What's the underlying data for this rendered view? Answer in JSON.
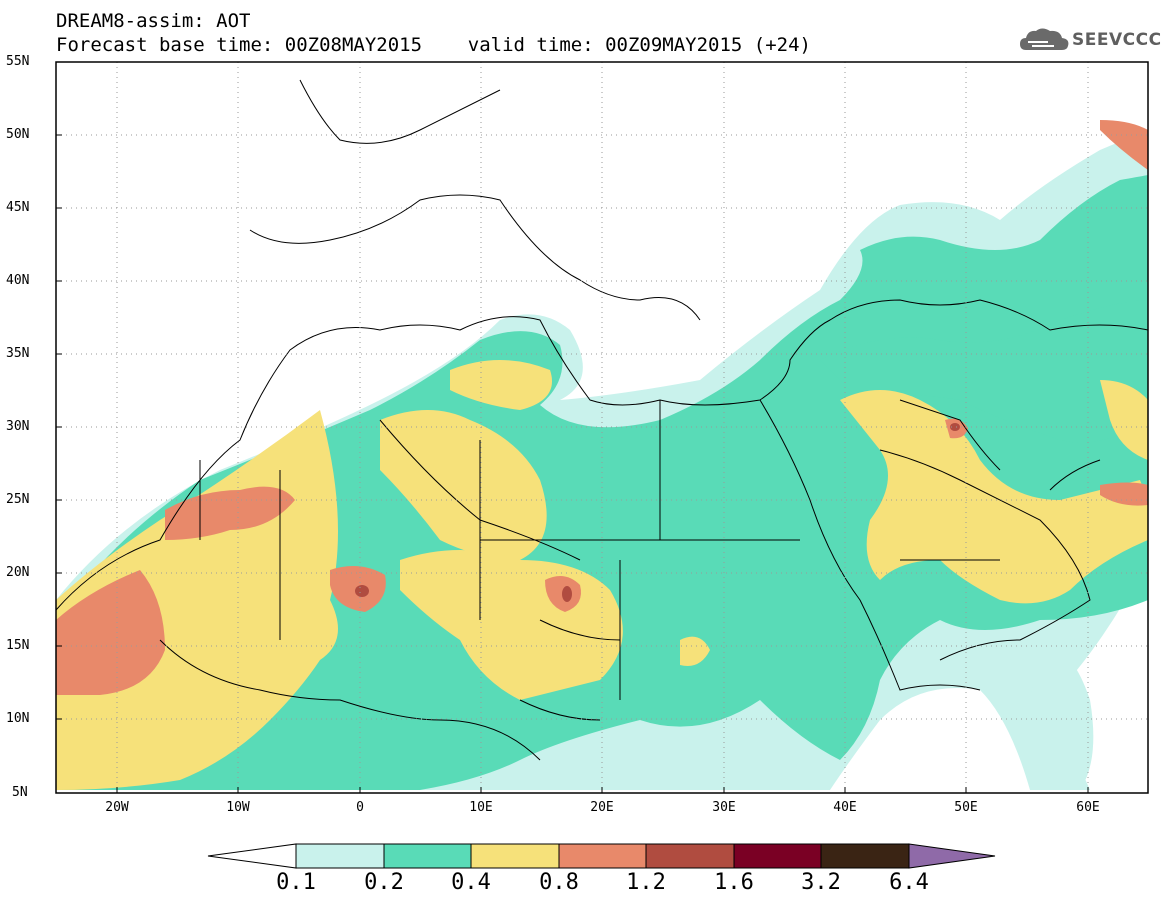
{
  "title": {
    "line1": "DREAM8-assim: AOT",
    "line2": "Forecast base time: 00Z08MAY2015    valid time: 00Z09MAY2015 (+24)"
  },
  "logo": {
    "text": "SEEVCCC",
    "icon": "cloud-logo-icon"
  },
  "axes": {
    "lat_labels": [
      "55N",
      "50N",
      "45N",
      "40N",
      "35N",
      "30N",
      "25N",
      "20N",
      "15N",
      "10N",
      "5N"
    ],
    "lon_labels": [
      "20W",
      "10W",
      "0",
      "10E",
      "20E",
      "30E",
      "40E",
      "50E",
      "60E"
    ],
    "lat_range": [
      5,
      55
    ],
    "lon_range": [
      -25,
      65
    ],
    "grid": "dotted"
  },
  "colorbar": {
    "labels": [
      "0.1",
      "0.2",
      "0.4",
      "0.8",
      "1.2",
      "1.6",
      "3.2",
      "6.4"
    ],
    "colors": [
      "#ffffff",
      "#c9f2ec",
      "#59dbb7",
      "#f6e17a",
      "#e8896a",
      "#b04c40",
      "#7a0024",
      "#3a2414",
      "#8f6aa8"
    ]
  },
  "colors": {
    "level_0_1": "#c9f2ec",
    "level_0_2": "#59dbb7",
    "level_0_4": "#f6e17a",
    "level_0_8": "#e8896a",
    "level_1_2": "#b04c40"
  }
}
